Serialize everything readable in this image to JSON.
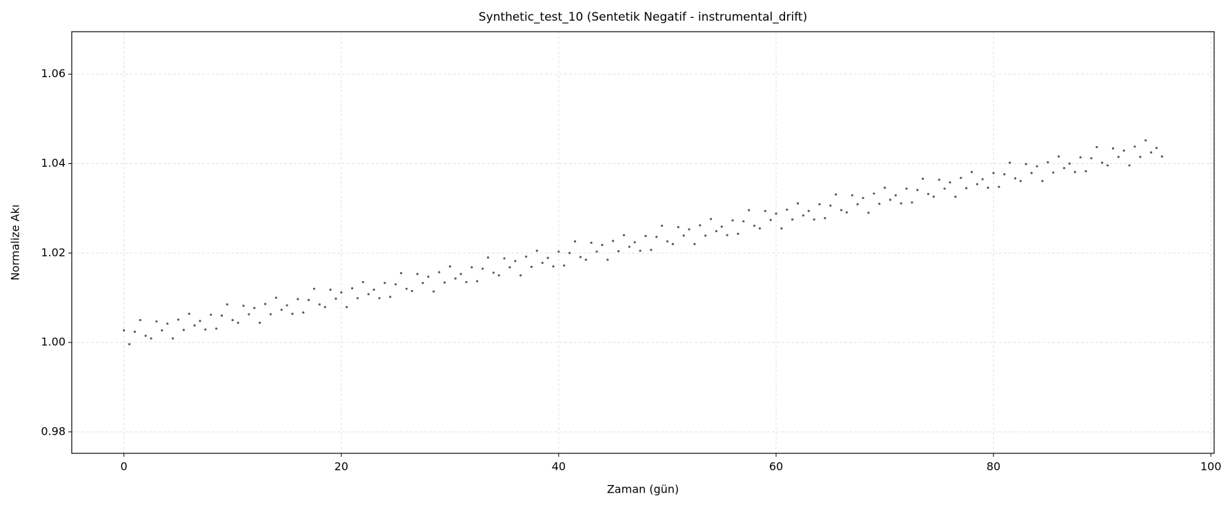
{
  "chart_data": {
    "type": "scatter",
    "title": "Synthetic_test_10 (Sentetik Negatif - instrumental_drift)",
    "x_label": "Zaman (gün)",
    "y_label": "Normalize Akı",
    "color": "#222222",
    "grid": true,
    "xlim": [
      -4.8,
      100.3
    ],
    "ylim": [
      0.9752,
      1.0695
    ],
    "xticks": [
      0,
      20,
      40,
      60,
      80,
      100
    ],
    "yticks": [
      0.98,
      {
        "value": 1,
        "label": "1.00"
      },
      1.02,
      1.04,
      1.06
    ],
    "x": [
      0,
      0.5,
      1,
      1.5,
      2,
      2.5,
      3,
      3.5,
      4,
      4.5,
      5,
      5.5,
      6,
      6.5,
      7,
      7.5,
      8,
      8.5,
      9,
      9.5,
      10,
      10.5,
      11,
      11.5,
      12,
      12.5,
      13,
      13.5,
      14,
      14.5,
      15,
      15.5,
      16,
      16.5,
      17,
      17.5,
      18,
      18.5,
      19,
      19.5,
      20,
      20.5,
      21,
      21.5,
      22,
      22.5,
      23,
      23.5,
      24,
      24.5,
      25,
      25.5,
      26,
      26.5,
      27,
      27.5,
      28,
      28.5,
      29,
      29.5,
      30,
      30.5,
      31,
      31.5,
      32,
      32.5,
      33,
      33.5,
      34,
      34.5,
      35,
      35.5,
      36,
      36.5,
      37,
      37.5,
      38,
      38.5,
      39,
      39.5,
      40,
      40.5,
      41,
      41.5,
      42,
      42.5,
      43,
      43.5,
      44,
      44.5,
      45,
      45.5,
      46,
      46.5,
      47,
      47.5,
      48,
      48.5,
      49,
      49.5,
      50,
      50.5,
      51,
      51.5,
      52,
      52.5,
      53,
      53.5,
      54,
      54.5,
      55,
      55.5,
      56,
      56.5,
      57,
      57.5,
      58,
      58.5,
      59,
      59.5,
      60,
      60.5,
      61,
      61.5,
      62,
      62.5,
      63,
      63.5,
      64,
      64.5,
      65,
      65.5,
      66,
      66.5,
      67,
      67.5,
      68,
      68.5,
      69,
      69.5,
      70,
      70.5,
      71,
      71.5,
      72,
      72.5,
      73,
      73.5,
      74,
      74.5,
      75,
      75.5,
      76,
      76.5,
      77,
      77.5,
      78,
      78.5,
      79,
      79.5,
      80,
      80.5,
      81,
      81.5,
      82,
      82.5,
      83,
      83.5,
      84,
      84.5,
      85,
      85.5,
      86,
      86.5,
      87,
      87.5,
      88,
      88.5,
      89,
      89.5,
      90,
      90.5,
      91,
      91.5,
      92,
      92.5,
      93,
      93.5,
      94,
      94.5,
      95,
      95.5
    ],
    "values": [
      1.0027,
      0.9996,
      1.0024,
      1.005,
      1.0015,
      1.0009,
      1.0047,
      1.0027,
      1.0042,
      1.0009,
      1.0051,
      1.0028,
      1.0064,
      1.0038,
      1.0048,
      1.0029,
      1.0062,
      1.0031,
      1.006,
      1.0085,
      1.005,
      1.0044,
      1.0082,
      1.0063,
      1.0077,
      1.0044,
      1.0086,
      1.0063,
      1.01,
      1.0073,
      1.0083,
      1.0064,
      1.0097,
      1.0067,
      1.0095,
      1.012,
      1.0085,
      1.0079,
      1.0118,
      1.0098,
      1.0112,
      1.0079,
      1.0121,
      1.0099,
      1.0135,
      1.0108,
      1.0118,
      1.0099,
      1.0133,
      1.0102,
      1.013,
      1.0155,
      1.012,
      1.0115,
      1.0153,
      1.0133,
      1.0147,
      1.0114,
      1.0157,
      1.0134,
      1.017,
      1.0143,
      1.0153,
      1.0135,
      1.0168,
      1.0137,
      1.0165,
      1.019,
      1.0156,
      1.015,
      1.0188,
      1.0168,
      1.0182,
      1.015,
      1.0192,
      1.0169,
      1.0205,
      1.0178,
      1.0189,
      1.017,
      1.0203,
      1.0172,
      1.02,
      1.0226,
      1.0191,
      1.0185,
      1.0223,
      1.0203,
      1.0218,
      1.0185,
      1.0227,
      1.0204,
      1.024,
      1.0214,
      1.0224,
      1.0205,
      1.0238,
      1.0207,
      1.0236,
      1.0261,
      1.0226,
      1.022,
      1.0258,
      1.0239,
      1.0253,
      1.022,
      1.0262,
      1.0239,
      1.0276,
      1.0249,
      1.0259,
      1.024,
      1.0273,
      1.0243,
      1.0271,
      1.0296,
      1.0261,
      1.0255,
      1.0294,
      1.0274,
      1.0288,
      1.0255,
      1.0297,
      1.0275,
      1.0311,
      1.0284,
      1.0294,
      1.0275,
      1.0309,
      1.0278,
      1.0306,
      1.0331,
      1.0296,
      1.0291,
      1.0329,
      1.0309,
      1.0323,
      1.029,
      1.0333,
      1.031,
      1.0346,
      1.0319,
      1.0329,
      1.0311,
      1.0344,
      1.0313,
      1.0341,
      1.0366,
      1.0332,
      1.0326,
      1.0364,
      1.0344,
      1.0358,
      1.0326,
      1.0368,
      1.0345,
      1.0381,
      1.0354,
      1.0365,
      1.0346,
      1.0379,
      1.0348,
      1.0376,
      1.0402,
      1.0367,
      1.0361,
      1.0399,
      1.0379,
      1.0394,
      1.0361,
      1.0403,
      1.038,
      1.0416,
      1.039,
      1.04,
      1.0381,
      1.0414,
      1.0383,
      1.0412,
      1.0437,
      1.0402,
      1.0396,
      1.0434,
      1.0415,
      1.0429,
      1.0396,
      1.0438,
      1.0415,
      1.0452,
      1.0425,
      1.0435,
      1.0416
    ]
  }
}
